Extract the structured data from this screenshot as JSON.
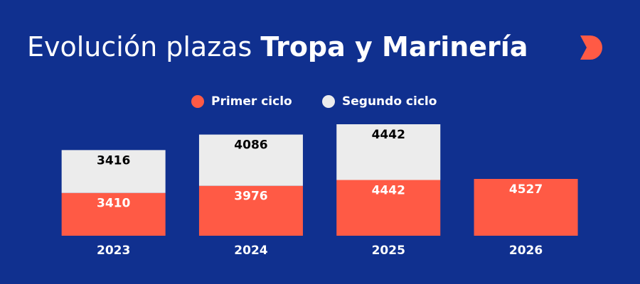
{
  "chart_data": {
    "type": "stacked-bar",
    "title": "Evolución plazas",
    "title_emphasis": "Tropa y Marinería",
    "categories": [
      "2023",
      "2024",
      "2025",
      "2026"
    ],
    "series": [
      {
        "name": "Primer ciclo",
        "color": "#ff5a45",
        "label_color": "#ffffff",
        "values": [
          3410,
          3976,
          4442,
          4527
        ]
      },
      {
        "name": "Segundo ciclo",
        "color": "#ececec",
        "label_color": "#000000",
        "values": [
          3416,
          4086,
          4442,
          null
        ]
      }
    ]
  }
}
